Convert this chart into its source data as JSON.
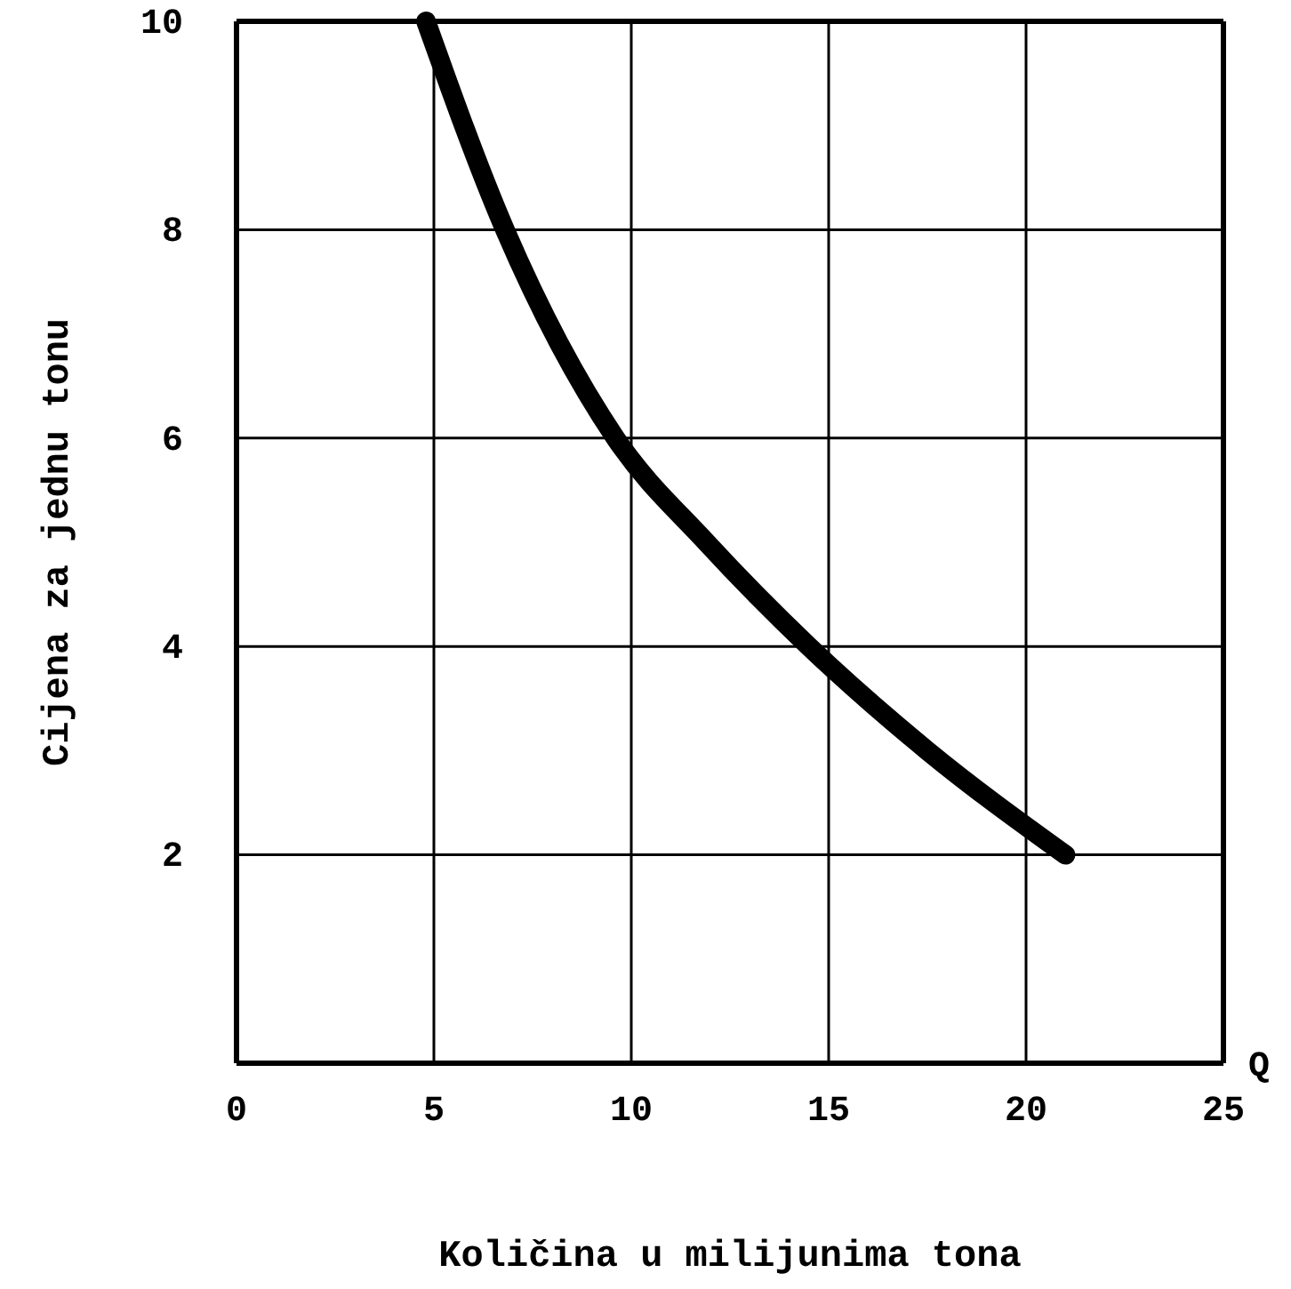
{
  "chart_data": {
    "type": "line",
    "xlabel": "Količina u milijunima tona",
    "ylabel": "Cijena za jednu tonu",
    "annotations": [
      "Q"
    ],
    "x": [
      4.8,
      6.8,
      9.6,
      11.9,
      14.5,
      17.5,
      21
    ],
    "series": [
      {
        "color": "#000000",
        "values": [
          10,
          8,
          6,
          5,
          4,
          3,
          2
        ]
      }
    ],
    "xlim": [
      0,
      25
    ],
    "xticks": [
      0,
      5,
      10,
      15,
      20,
      25
    ],
    "ylim": [
      0,
      10
    ],
    "yticks": [
      {
        "value": 0,
        "label": null
      },
      2,
      4,
      6,
      8,
      10
    ],
    "grid": true,
    "line_style": "solid"
  }
}
